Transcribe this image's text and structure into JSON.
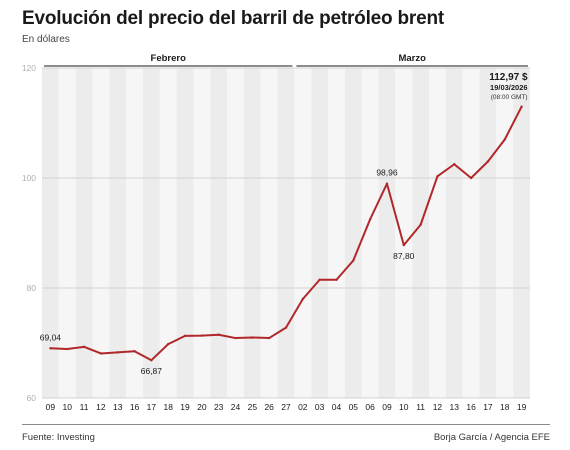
{
  "header": {
    "title": "Evolución del precio del barril de petróleo brent",
    "subtitle": "En dólares"
  },
  "chart_data": {
    "type": "line",
    "month_labels": [
      {
        "label": "Febrero",
        "from": 0,
        "to": 14
      },
      {
        "label": "Marzo",
        "from": 15,
        "to": 28
      }
    ],
    "categories": [
      "09",
      "10",
      "11",
      "12",
      "13",
      "16",
      "17",
      "18",
      "19",
      "20",
      "23",
      "24",
      "25",
      "26",
      "27",
      "02",
      "03",
      "04",
      "05",
      "06",
      "09",
      "10",
      "11",
      "12",
      "13",
      "16",
      "17",
      "18",
      "19"
    ],
    "series": [
      {
        "color": "#b0282a",
        "values": [
          69.04,
          68.9,
          69.3,
          68.1,
          68.3,
          68.5,
          66.87,
          69.8,
          71.3,
          71.35,
          71.5,
          70.9,
          71.0,
          70.9,
          72.8,
          78.0,
          81.5,
          81.5,
          85.0,
          92.5,
          98.96,
          87.8,
          91.5,
          100.3,
          102.5,
          100.0,
          103.0,
          107.0,
          112.97
        ]
      }
    ],
    "ylim": [
      60,
      120
    ],
    "yticks": [
      60,
      80,
      100,
      120
    ],
    "grid": true,
    "annotations": [
      {
        "index": 0,
        "text": "69,04",
        "position": "above"
      },
      {
        "index": 6,
        "text": "66,87",
        "position": "below"
      },
      {
        "index": 20,
        "text": "98,96",
        "position": "above"
      },
      {
        "index": 21,
        "text": "87,80",
        "position": "below"
      }
    ],
    "last_point_label": {
      "value": "112,97 $",
      "date": "19/03/2026",
      "time": "(08:00 GMT)"
    }
  },
  "footer": {
    "source": "Fuente: Investing",
    "credit": "Borja García / Agencia EFE"
  }
}
